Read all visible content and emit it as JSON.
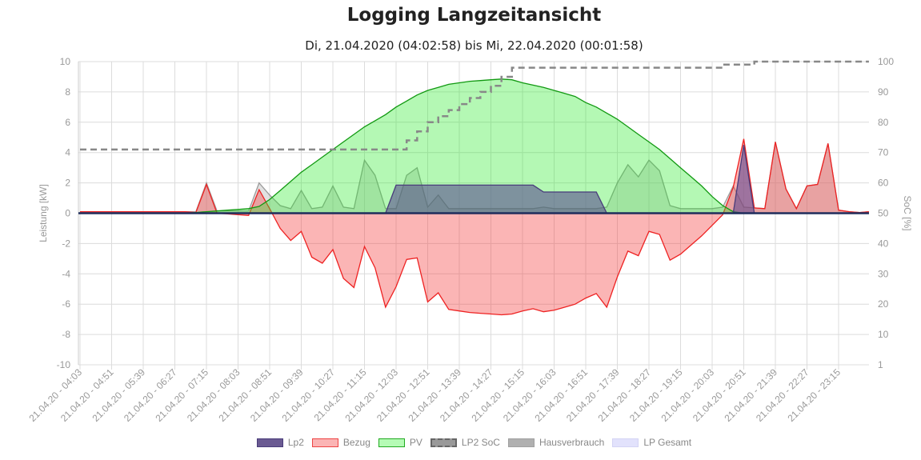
{
  "title": "Logging Langzeitansicht",
  "subtitle": "Di, 21.04.2020 (04:02:58) bis Mi, 22.04.2020 (00:01:58)",
  "chart_data": {
    "type": "line",
    "title": "Logging Langzeitansicht",
    "subtitle": "Di, 21.04.2020 (04:02:58) bis Mi, 22.04.2020 (00:01:58)",
    "ylabel": "Leistung [kW]",
    "y2label": "SoC [%]",
    "ylim": [
      -10,
      10
    ],
    "y2lim": [
      1,
      100
    ],
    "y_ticks": [
      "10",
      "8",
      "6",
      "4",
      "2",
      "0",
      "-2",
      "-4",
      "-6",
      "-8",
      "-10"
    ],
    "y2_ticks": [
      "100",
      "90",
      "80",
      "70",
      "60",
      "50",
      "40",
      "30",
      "20",
      "10",
      "1"
    ],
    "x_ticks": [
      "21.04.20 - 04:03",
      "21.04.20 - 04:51",
      "21.04.20 - 05:39",
      "21.04.20 - 06:27",
      "21.04.20 - 07:15",
      "21.04.20 - 08:03",
      "21.04.20 - 08:51",
      "21.04.20 - 09:39",
      "21.04.20 - 10:27",
      "21.04.20 - 11:15",
      "21.04.20 - 12:03",
      "21.04.20 - 12:51",
      "21.04.20 - 13:39",
      "21.04.20 - 14:27",
      "21.04.20 - 15:15",
      "21.04.20 - 16:03",
      "21.04.20 - 16:51",
      "21.04.20 - 17:39",
      "21.04.20 - 18:27",
      "21.04.20 - 19:15",
      "21.04.20 - 20:03",
      "21.04.20 - 20:51",
      "21.04.20 - 21:39",
      "21.04.20 - 22:27",
      "21.04.20 - 23:15"
    ],
    "grid": true,
    "legend_position": "bottom",
    "x": [
      "04:03",
      "04:19",
      "04:35",
      "04:51",
      "05:07",
      "05:23",
      "05:39",
      "05:55",
      "06:11",
      "06:27",
      "06:43",
      "06:59",
      "07:15",
      "07:31",
      "07:47",
      "08:03",
      "08:19",
      "08:35",
      "08:51",
      "09:07",
      "09:23",
      "09:39",
      "09:55",
      "10:11",
      "10:27",
      "10:43",
      "10:59",
      "11:15",
      "11:31",
      "11:47",
      "12:03",
      "12:19",
      "12:35",
      "12:51",
      "13:07",
      "13:23",
      "13:39",
      "13:55",
      "14:11",
      "14:27",
      "14:43",
      "14:59",
      "15:15",
      "15:31",
      "15:47",
      "16:03",
      "16:19",
      "16:35",
      "16:51",
      "17:07",
      "17:23",
      "17:39",
      "17:55",
      "18:11",
      "18:27",
      "18:43",
      "18:59",
      "19:15",
      "19:31",
      "19:47",
      "20:03",
      "20:19",
      "20:35",
      "20:51",
      "21:07",
      "21:23",
      "21:39",
      "21:55",
      "22:11",
      "22:27",
      "22:43",
      "22:59",
      "23:15",
      "23:31",
      "23:47",
      "00:01"
    ],
    "series": [
      {
        "name": "Lp2",
        "axis": "left",
        "color": "#4a3d7a",
        "fill": "rgba(90,70,140,0.55)",
        "values": [
          0,
          0,
          0,
          0,
          0,
          0,
          0,
          0,
          0,
          0,
          0,
          0,
          0,
          0,
          0,
          0,
          0,
          0,
          0,
          0,
          0,
          0,
          0,
          0,
          0,
          0,
          0,
          0,
          0,
          0,
          1.85,
          1.85,
          1.85,
          1.85,
          1.85,
          1.85,
          1.85,
          1.85,
          1.85,
          1.85,
          1.85,
          1.85,
          1.85,
          1.85,
          1.4,
          1.4,
          1.4,
          1.4,
          1.4,
          1.4,
          0,
          0,
          0,
          0,
          0,
          0,
          0,
          0,
          0,
          0,
          0,
          0,
          0,
          4.5,
          0,
          0,
          0,
          0,
          0,
          0,
          0,
          0,
          0,
          0,
          0,
          0
        ]
      },
      {
        "name": "Bezug",
        "axis": "left",
        "color": "#ee2222",
        "fill": "rgba(245,60,60,0.38)",
        "values": [
          0.1,
          0.1,
          0.1,
          0.1,
          0.1,
          0.1,
          0.1,
          0.1,
          0.1,
          0.1,
          0.1,
          0.05,
          1.9,
          0,
          -0.05,
          -0.1,
          -0.15,
          1.55,
          0.3,
          -1.0,
          -1.8,
          -1.2,
          -2.9,
          -3.3,
          -2.4,
          -4.3,
          -4.9,
          -2.2,
          -3.6,
          -6.2,
          -4.85,
          -3.05,
          -2.95,
          -5.85,
          -5.25,
          -6.35,
          -6.45,
          -6.55,
          -6.6,
          -6.65,
          -6.7,
          -6.65,
          -6.45,
          -6.3,
          -6.5,
          -6.4,
          -6.2,
          -6.0,
          -5.6,
          -5.3,
          -6.2,
          -4.2,
          -2.5,
          -2.8,
          -1.2,
          -1.4,
          -3.1,
          -2.7,
          -2.1,
          -1.5,
          -0.8,
          -0.1,
          1.7,
          4.9,
          0.35,
          0.3,
          4.7,
          1.6,
          0.3,
          1.8,
          1.9,
          4.6,
          0.2,
          0.1,
          0.05,
          0.1
        ]
      },
      {
        "name": "PV",
        "axis": "left",
        "color": "#119911",
        "fill": "rgba(40,235,40,0.35)",
        "values": [
          0,
          0,
          0,
          0,
          0,
          0,
          0,
          0,
          0,
          0,
          0,
          0.05,
          0.1,
          0.15,
          0.2,
          0.25,
          0.3,
          0.45,
          0.9,
          1.5,
          2.1,
          2.7,
          3.2,
          3.7,
          4.2,
          4.7,
          5.2,
          5.7,
          6.1,
          6.5,
          7.0,
          7.4,
          7.8,
          8.1,
          8.3,
          8.5,
          8.6,
          8.7,
          8.75,
          8.8,
          8.85,
          8.8,
          8.6,
          8.45,
          8.3,
          8.1,
          7.9,
          7.7,
          7.3,
          7.0,
          6.6,
          6.2,
          5.7,
          5.2,
          4.7,
          4.2,
          3.6,
          3.0,
          2.4,
          1.8,
          1.1,
          0.5,
          0.1,
          0,
          0,
          0,
          0,
          0,
          0,
          0,
          0,
          0,
          0,
          0,
          0,
          0
        ]
      },
      {
        "name": "LP2 SoC",
        "axis": "right",
        "color": "#888888",
        "dashed": true,
        "values": [
          71,
          71,
          71,
          71,
          71,
          71,
          71,
          71,
          71,
          71,
          71,
          71,
          71,
          71,
          71,
          71,
          71,
          71,
          71,
          71,
          71,
          71,
          71,
          71,
          71,
          71,
          71,
          71,
          71,
          71,
          71,
          74,
          77,
          80,
          82,
          84,
          86,
          88,
          90,
          92,
          95,
          98,
          98,
          98,
          98,
          98,
          98,
          98,
          98,
          98,
          98,
          98,
          98,
          98,
          98,
          98,
          98,
          98,
          98,
          98,
          98,
          99,
          99,
          99,
          100,
          100,
          100,
          100,
          100,
          100,
          100,
          100,
          100,
          100,
          100,
          100
        ]
      },
      {
        "name": "Hausverbrauch",
        "axis": "left",
        "color": "rgba(140,140,140,0.85)",
        "fill": "rgba(170,170,170,0.35)",
        "values": [
          0.1,
          0.1,
          0.1,
          0.1,
          0.1,
          0.1,
          0.1,
          0.1,
          0.1,
          0.1,
          0.1,
          0.1,
          2.0,
          0.15,
          0.15,
          0.15,
          0.15,
          2.0,
          1.2,
          0.5,
          0.3,
          1.5,
          0.3,
          0.4,
          1.8,
          0.4,
          0.3,
          3.5,
          2.5,
          0.3,
          0.3,
          2.5,
          3.0,
          0.4,
          1.2,
          0.3,
          0.3,
          0.3,
          0.3,
          0.3,
          0.3,
          0.3,
          0.3,
          0.3,
          0.4,
          0.3,
          0.3,
          0.3,
          0.3,
          0.3,
          0.4,
          2.0,
          3.2,
          2.4,
          3.5,
          2.8,
          0.5,
          0.3,
          0.3,
          0.3,
          0.3,
          0.4,
          1.8,
          0.4,
          0.35,
          0.3,
          4.7,
          1.6,
          0.3,
          1.8,
          1.9,
          4.6,
          0.2,
          0.1,
          0.05,
          0.1
        ]
      },
      {
        "name": "LP Gesamt",
        "axis": "left",
        "color": "rgba(190,190,255,0.9)",
        "fill": "rgba(210,210,255,0.3)",
        "values": [
          0,
          0,
          0,
          0,
          0,
          0,
          0,
          0,
          0,
          0,
          0,
          0,
          0,
          0,
          0,
          0,
          0,
          0,
          0,
          0,
          0,
          0,
          0,
          0,
          0,
          0,
          0,
          0,
          0,
          0,
          1.85,
          1.85,
          1.85,
          1.85,
          1.85,
          1.85,
          1.85,
          1.85,
          1.85,
          1.85,
          1.85,
          1.85,
          1.85,
          1.85,
          1.4,
          1.4,
          1.4,
          1.4,
          1.4,
          1.4,
          0,
          0,
          0,
          0,
          0,
          0,
          0,
          0,
          0,
          0,
          0,
          0,
          0,
          4.5,
          0,
          0,
          0,
          0,
          0,
          0,
          0,
          0,
          0,
          0,
          0,
          0
        ]
      }
    ]
  },
  "legend": [
    {
      "label": "Lp2",
      "fill": "#6a5a92",
      "border": "#4a3d7a"
    },
    {
      "label": "Bezug",
      "fill": "#fbb4b4",
      "border": "#ee4444"
    },
    {
      "label": "PV",
      "fill": "#b5fbb5",
      "border": "#22aa22"
    },
    {
      "label": "LP2 SoC",
      "fill": "#999999",
      "border": "#666666",
      "dashed": true
    },
    {
      "label": "Hausverbrauch",
      "fill": "#b0b0b0",
      "border": "#a0a0a0"
    },
    {
      "label": "LP Gesamt",
      "fill": "#e2e2fc",
      "border": "#d4d4f4"
    }
  ]
}
